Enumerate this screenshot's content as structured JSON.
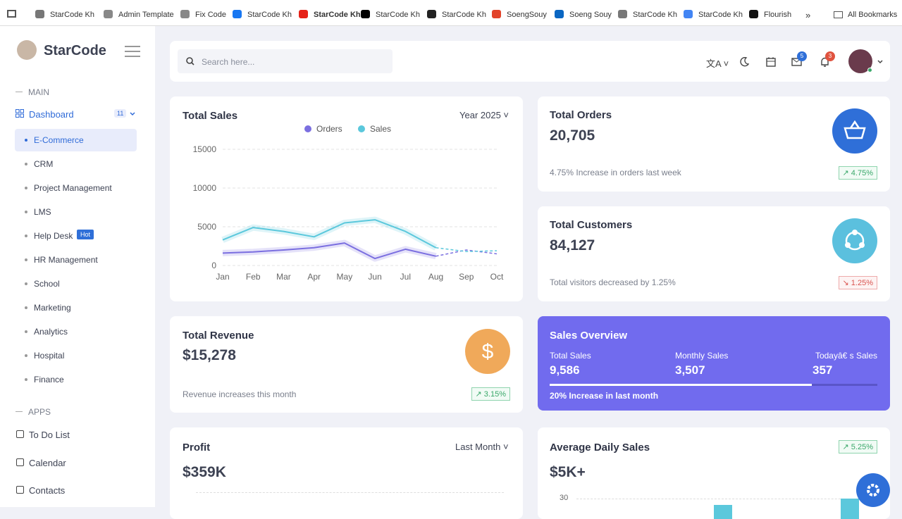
{
  "bookmarks": [
    "StarCode Kh",
    "Admin Template",
    "Fix Code",
    "StarCode Kh",
    "StarCode Kh",
    "StarCode Kh",
    "StarCode Kh",
    "SoengSouy",
    "Soeng Souy",
    "StarCode Kh",
    "StarCode Kh",
    "Flourish"
  ],
  "all_bookmarks": "All Bookmarks",
  "sidebar": {
    "brand": "StarCode",
    "main_label": "MAIN",
    "dashboard": "Dashboard",
    "dashboard_count": 11,
    "submenu": [
      "E-Commerce",
      "CRM",
      "Project Management",
      "LMS",
      "Help Desk",
      "HR Management",
      "School",
      "Marketing",
      "Analytics",
      "Hospital",
      "Finance"
    ],
    "hot_badge": "Hot",
    "apps_label": "APPS",
    "apps": [
      "To Do List",
      "Calendar",
      "Contacts"
    ]
  },
  "header": {
    "search_placeholder": "Search here...",
    "mail_count": 5,
    "notification_count": 3
  },
  "chart_data": {
    "type": "line",
    "title": "Total Sales",
    "period": "Year 2025",
    "categories": [
      "Jan",
      "Feb",
      "Mar",
      "Apr",
      "May",
      "Jun",
      "Jul",
      "Aug",
      "Sep",
      "Oct"
    ],
    "series": [
      {
        "name": "Orders",
        "color": "#7b6fe0",
        "values": [
          1600,
          1750,
          2000,
          2300,
          2900,
          900,
          2100,
          1200,
          2000,
          1500
        ]
      },
      {
        "name": "Sales",
        "color": "#5bc8dc",
        "values": [
          3300,
          4900,
          4400,
          3700,
          5500,
          5900,
          4400,
          2300,
          1800,
          1900
        ]
      }
    ],
    "ylim": [
      0,
      15000
    ],
    "yticks": [
      0,
      5000,
      10000,
      15000
    ],
    "grid": true,
    "dashed_from_index": 7
  },
  "cards": {
    "total_orders": {
      "title": "Total Orders",
      "value": "20,705",
      "note": "4.75% Increase in orders last week",
      "change": "4.75%"
    },
    "total_customers": {
      "title": "Total Customers",
      "value": "84,127",
      "note": "Total visitors decreased by 1.25%",
      "change": "1.25%"
    },
    "total_revenue": {
      "title": "Total Revenue",
      "value": "$15,278",
      "note": "Revenue increases this month",
      "change": "3.15%"
    },
    "sales_overview": {
      "title": "Sales Overview",
      "items": [
        {
          "label": "Total Sales",
          "value": "9,586"
        },
        {
          "label": "Monthly Sales",
          "value": "3,507"
        },
        {
          "label": "Todayâ€   s Sales",
          "value": "357"
        }
      ],
      "note": "20% Increase in last month"
    },
    "profit": {
      "title": "Profit",
      "period": "Last Month",
      "value": "$359K"
    },
    "avg_daily_sales": {
      "title": "Average Daily Sales",
      "change": "5.25%",
      "value": "$5K+",
      "ytick_label": "30"
    }
  }
}
